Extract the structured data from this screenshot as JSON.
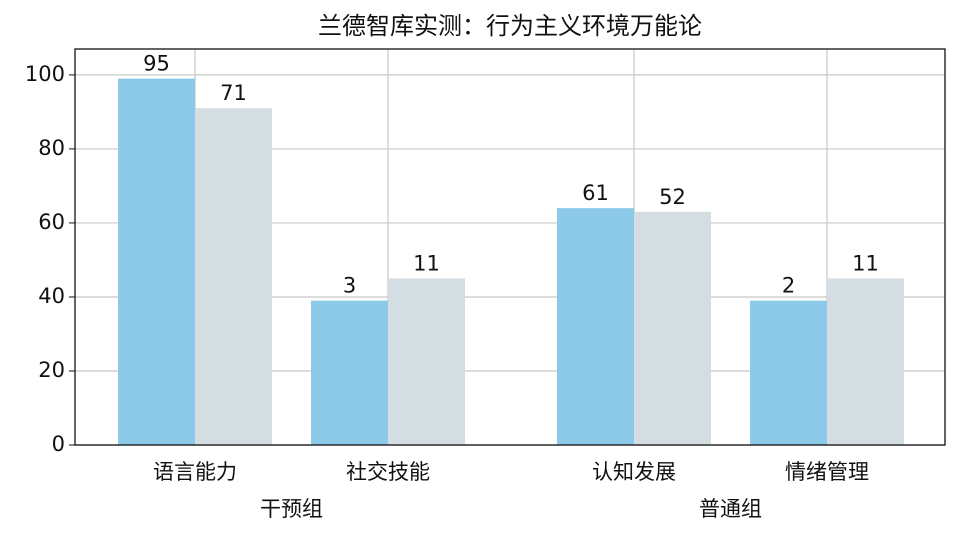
{
  "chart_data": {
    "type": "bar",
    "title": "兰德智库实测：行为主义环境万能论",
    "groups": [
      {
        "name": "干预组",
        "categories": [
          "语言能力",
          "社交技能"
        ]
      },
      {
        "name": "普通组",
        "categories": [
          "认知发展",
          "情绪管理"
        ]
      }
    ],
    "series": [
      {
        "color": "#8dc9e8",
        "values": [
          99,
          39,
          64,
          39
        ],
        "annotations": [
          "95",
          "3",
          "61",
          "2"
        ]
      },
      {
        "color": "#d4dde2",
        "values": [
          91,
          45,
          63,
          45
        ],
        "annotations": [
          "71",
          "11",
          "52",
          "11"
        ]
      }
    ],
    "ylim": [
      0,
      107
    ],
    "yticks": [
      0,
      20,
      40,
      60,
      80,
      100
    ],
    "grid": true
  }
}
